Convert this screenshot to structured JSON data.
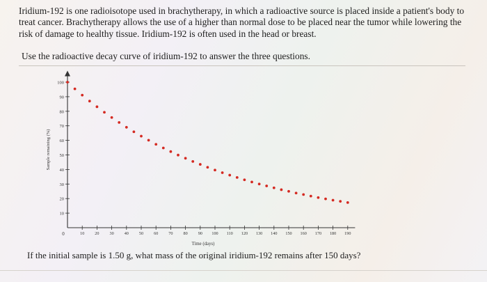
{
  "problem": {
    "intro": "Iridium-192 is one radioisotope used in brachytherapy, in which a radioactive source is placed inside a patient's body to treat cancer. Brachytherapy allows the use of a higher than normal dose to be placed near the tumor while lowering the risk of damage to healthy tissue. Iridium-192 is often used in the head or breast.",
    "instruction": "Use the radioactive decay curve of iridium-192 to answer the three questions.",
    "question": "If the initial sample is 1.50 g, what mass of the original iridium-192 remains after 150 days?"
  },
  "colors": {
    "point": "#d42a22",
    "axis": "#333333"
  },
  "chart_data": {
    "type": "scatter",
    "title": "",
    "xlabel": "Time (days)",
    "ylabel": "Sample remaining (%)",
    "xlim": [
      0,
      195
    ],
    "ylim": [
      0,
      105
    ],
    "origin_label": "0",
    "xticks": [
      10,
      20,
      30,
      40,
      50,
      60,
      70,
      80,
      90,
      100,
      110,
      120,
      130,
      140,
      150,
      160,
      170,
      180,
      190
    ],
    "yticks": [
      10,
      20,
      30,
      40,
      50,
      60,
      70,
      80,
      90,
      100
    ],
    "grid": false,
    "legend": "none",
    "points": [
      [
        0,
        100
      ],
      [
        5,
        95.4
      ],
      [
        10,
        91.1
      ],
      [
        15,
        87.0
      ],
      [
        20,
        83.1
      ],
      [
        25,
        79.3
      ],
      [
        30,
        75.7
      ],
      [
        35,
        72.3
      ],
      [
        40,
        69.0
      ],
      [
        45,
        65.9
      ],
      [
        50,
        62.9
      ],
      [
        55,
        60.1
      ],
      [
        60,
        57.3
      ],
      [
        65,
        54.8
      ],
      [
        70,
        52.3
      ],
      [
        75,
        49.9
      ],
      [
        80,
        47.7
      ],
      [
        85,
        45.5
      ],
      [
        90,
        43.5
      ],
      [
        95,
        41.5
      ],
      [
        100,
        39.6
      ],
      [
        105,
        37.8
      ],
      [
        110,
        36.1
      ],
      [
        115,
        34.5
      ],
      [
        120,
        32.9
      ],
      [
        125,
        31.4
      ],
      [
        130,
        30.0
      ],
      [
        135,
        28.7
      ],
      [
        140,
        27.4
      ],
      [
        145,
        26.1
      ],
      [
        150,
        25.0
      ],
      [
        155,
        23.8
      ],
      [
        160,
        22.8
      ],
      [
        165,
        21.7
      ],
      [
        170,
        20.7
      ],
      [
        175,
        19.8
      ],
      [
        180,
        18.9
      ],
      [
        185,
        18.1
      ],
      [
        190,
        17.3
      ]
    ]
  }
}
